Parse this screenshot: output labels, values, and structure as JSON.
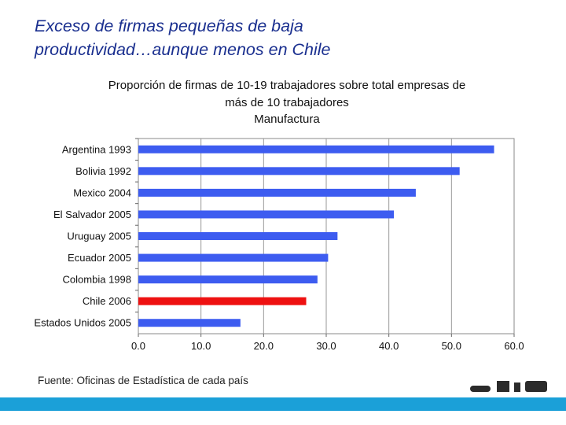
{
  "slide": {
    "title_line1": "Exceso de firmas pequeñas de baja",
    "title_line2": "productividad…aunque menos en Chile",
    "source": "Fuente: Oficinas de Estadística de cada país"
  },
  "colors": {
    "title": "#1a2f8f",
    "bar": "#3d5cf0",
    "bar_highlight": "#ee1111",
    "footer": "#1ba0d8"
  },
  "chart_data": {
    "type": "bar",
    "orientation": "horizontal",
    "title_lines": [
      "Proporción de firmas de 10-19 trabajadores sobre total empresas de",
      "más de 10 trabajadores",
      "Manufactura"
    ],
    "categories": [
      "Argentina 1993",
      "Bolivia 1992",
      "Mexico 2004",
      "El Salvador 2005",
      "Uruguay 2005",
      "Ecuador 2005",
      "Colombia 1998",
      "Chile 2006",
      "Estados Unidos 2005"
    ],
    "values": [
      56.8,
      51.3,
      44.3,
      40.8,
      31.8,
      30.3,
      28.6,
      26.8,
      16.3
    ],
    "highlight": "Chile 2006",
    "xlim": [
      0,
      60
    ],
    "xticks": [
      0,
      10,
      20,
      30,
      40,
      50,
      60
    ],
    "xtick_labels": [
      "0.0",
      "10.0",
      "20.0",
      "30.0",
      "40.0",
      "50.0",
      "60.0"
    ],
    "xlabel": "",
    "ylabel": "",
    "grid": "vertical"
  }
}
